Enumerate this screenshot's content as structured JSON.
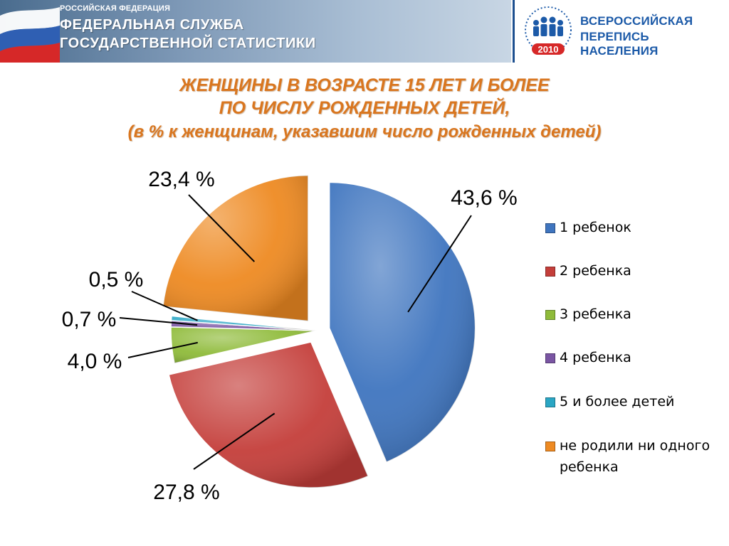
{
  "header": {
    "org_small": "РОССИЙСКАЯ ФЕДЕРАЦИЯ",
    "org_line1": "ФЕДЕРАЛЬНАЯ СЛУЖБА",
    "org_line2": "ГОСУДАРСТВЕННОЙ СТАТИСТИКИ",
    "census_line1": "ВСЕРОССИЙСКАЯ",
    "census_line2": "ПЕРЕПИСЬ НАСЕЛЕНИЯ",
    "census_year": "2010",
    "flag_colors": [
      "#ffffff",
      "#2f5fb3",
      "#d62828"
    ],
    "census_color": "#1c5aa8",
    "logo_icon": "people-group-logo"
  },
  "chart_data": {
    "type": "pie",
    "title_lines": [
      "ЖЕНЩИНЫ В ВОЗРАСТЕ 15 ЛЕТ И БОЛЕЕ",
      "ПО ЧИСЛУ РОЖДЕННЫХ ДЕТЕЙ,",
      "(в % к женщинам, указавшим число рожденных детей)"
    ],
    "slices": [
      {
        "name": "1 ребенок",
        "value": 43.6,
        "label": "43,6 %",
        "color": "#3f75bf",
        "exploded": true
      },
      {
        "name": "2 ребенка",
        "value": 27.8,
        "label": "27,8 %",
        "color": "#c43e3a",
        "exploded": true
      },
      {
        "name": "3 ребенка",
        "value": 4.0,
        "label": "4,0 %",
        "color": "#8fbb3a",
        "exploded": false
      },
      {
        "name": "4 ребенка",
        "value": 0.7,
        "label": "0,7 %",
        "color": "#7a55a3",
        "exploded": false
      },
      {
        "name": "5 и более детей",
        "value": 0.5,
        "label": "0,5 %",
        "color": "#2aa6c4",
        "exploded": false
      },
      {
        "name": "не родили ни одного ребенка",
        "value": 23.4,
        "label": "23,4 %",
        "color": "#ee8a22",
        "exploded": true
      }
    ],
    "legend_placement": "right",
    "legend": [
      {
        "text": "1 ребенок"
      },
      {
        "text": "2 ребенка"
      },
      {
        "text": "3 ребенка"
      },
      {
        "text": "4 ребенка"
      },
      {
        "text": "5 и более детей"
      },
      {
        "text": "не родили ни одного ребенка"
      }
    ]
  }
}
